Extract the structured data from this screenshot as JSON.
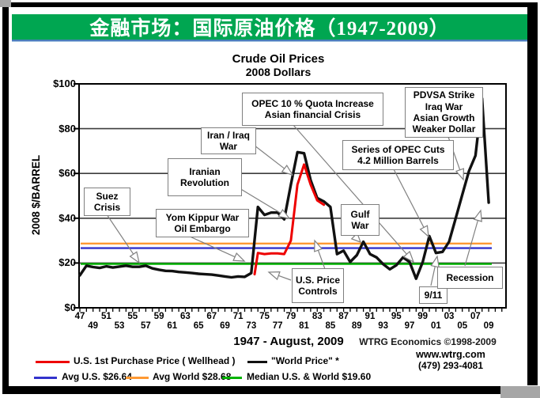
{
  "header": {
    "title": "金融市场：国际原油价格（1947-2009）"
  },
  "footer": {
    "date_range": "1947 - August, 2009",
    "credit": "WTRG Economics ©1998-2009",
    "website": "www.wtrg.com",
    "phone": "(479) 293-4081"
  },
  "chart_data": {
    "type": "line",
    "title": "Crude Oil Prices",
    "subtitle": "2008 Dollars",
    "ylabel": "2008 $/BARREL",
    "xlabel": "",
    "ylim": [
      0,
      100
    ],
    "xlim": [
      1947,
      2011
    ],
    "grid": "horizontal",
    "legend_position": "bottom",
    "y_ticks": {
      "labels": [
        "$100",
        "$80",
        "$60",
        "$40",
        "$20",
        "$0"
      ],
      "values": [
        100,
        80,
        60,
        40,
        20,
        0
      ]
    },
    "x_ticks_row1": [
      "47",
      "51",
      "55",
      "59",
      "63",
      "67",
      "71",
      "75",
      "79",
      "83",
      "87",
      "91",
      "95",
      "99",
      "03",
      "07"
    ],
    "x_ticks_row2": [
      "49",
      "53",
      "57",
      "61",
      "65",
      "69",
      "73",
      "77",
      "81",
      "85",
      "89",
      "93",
      "97",
      "01",
      "05",
      "09"
    ],
    "series": [
      {
        "name": "U.S. 1st Purchase Price ( Wellhead )",
        "color": "#ee0000",
        "x": [
          1973.5,
          1974,
          1975,
          1976,
          1977,
          1978,
          1979,
          1980,
          1981,
          1982,
          1983,
          1984
        ],
        "values": [
          15,
          24.5,
          24,
          24.3,
          24.3,
          24,
          30,
          55,
          64,
          55,
          48,
          46
        ]
      },
      {
        "name": "\"World Price\" *",
        "color": "#111111",
        "x": [
          1947,
          1948,
          1949,
          1950,
          1951,
          1952,
          1953,
          1954,
          1955,
          1956,
          1957,
          1958,
          1959,
          1960,
          1961,
          1962,
          1963,
          1964,
          1965,
          1966,
          1967,
          1968,
          1969,
          1970,
          1971,
          1972,
          1973,
          1974,
          1975,
          1976,
          1977,
          1978,
          1979,
          1980,
          1981,
          1982,
          1983,
          1984,
          1985,
          1986,
          1987,
          1988,
          1989,
          1990,
          1991,
          1992,
          1993,
          1994,
          1995,
          1996,
          1997,
          1998,
          1999,
          2000,
          2001,
          2002,
          2003,
          2004,
          2005,
          2006,
          2007,
          2008,
          2009
        ],
        "values": [
          14.5,
          18.8,
          18.2,
          17.8,
          18.5,
          18.0,
          18.4,
          18.8,
          18.3,
          18.3,
          18.8,
          17.6,
          17.0,
          16.5,
          16.4,
          16.0,
          15.8,
          15.5,
          15.2,
          15.0,
          14.8,
          14.4,
          14.0,
          13.6,
          14.0,
          13.8,
          15.5,
          45.0,
          41.5,
          42.5,
          42.5,
          39.5,
          55.0,
          69.5,
          69.0,
          57.0,
          49.0,
          47.5,
          45.0,
          24.0,
          25.5,
          20.5,
          23.5,
          29.5,
          24.0,
          22.5,
          19.5,
          17.2,
          19.0,
          22.5,
          20.5,
          13.0,
          20.5,
          32.0,
          24.5,
          25.0,
          29.5,
          40.0,
          50.5,
          61.0,
          68.0,
          93.5,
          47.0
        ]
      }
    ],
    "reference_lines": [
      {
        "label": "Avg U.S. $26.64",
        "value": 26.64,
        "color": "#3333cc"
      },
      {
        "label": "Avg World $28.68",
        "value": 28.68,
        "color": "#ff9933"
      },
      {
        "label": "Median U.S. & World  $19.60",
        "value": 19.6,
        "color": "#00b300"
      }
    ],
    "annotations": [
      {
        "id": "suez-crisis",
        "lines": [
          "Suez",
          "Crisis"
        ]
      },
      {
        "id": "yom-kippur",
        "lines": [
          "Yom Kippur War",
          "Oil Embargo"
        ]
      },
      {
        "id": "iranian-revolution",
        "lines": [
          "Iranian",
          "Revolution"
        ]
      },
      {
        "id": "iran-iraq-war",
        "lines": [
          "Iran / Iraq",
          "War"
        ]
      },
      {
        "id": "opec-quota-increase",
        "lines": [
          "OPEC 10 % Quota Increase",
          "Asian financial Crisis"
        ]
      },
      {
        "id": "pdvsa-strike",
        "lines": [
          "PDVSA Strike",
          "Iraq War",
          "Asian Growth",
          "Weaker Dollar"
        ]
      },
      {
        "id": "opec-cuts",
        "lines": [
          "Series of OPEC Cuts",
          "4.2 Million Barrels"
        ]
      },
      {
        "id": "gulf-war",
        "lines": [
          "Gulf",
          "War"
        ]
      },
      {
        "id": "us-price-controls",
        "lines": [
          "U.S. Price",
          "Controls"
        ]
      },
      {
        "id": "nine-eleven",
        "lines": [
          "9/11"
        ]
      },
      {
        "id": "recession",
        "lines": [
          "Recession"
        ]
      }
    ]
  }
}
